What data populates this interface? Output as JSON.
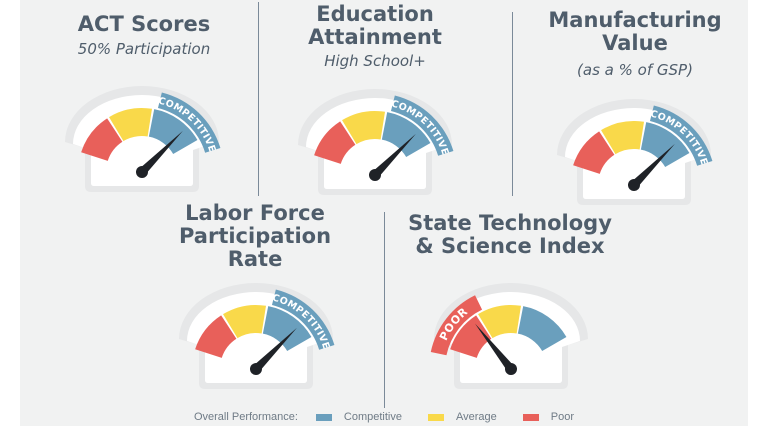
{
  "colors": {
    "competitive": "#6a9fbd",
    "average": "#f9d94a",
    "poor": "#e8605a",
    "gauge_face": "#e6e7e8",
    "gauge_inner": "#ffffff",
    "needle": "#1f2227"
  },
  "gauges": [
    {
      "id": "act",
      "title_lines": [
        "ACT Scores"
      ],
      "subtitle": "50% Participation",
      "rating": "competitive",
      "badge": "COMPETITIVE",
      "needle_level": 0.78
    },
    {
      "id": "education",
      "title_lines": [
        "Education",
        "Attainment"
      ],
      "subtitle": "High School+",
      "rating": "competitive",
      "badge": "COMPETITIVE",
      "needle_level": 0.78
    },
    {
      "id": "manufacturing",
      "title_lines": [
        "Manufacturing",
        "Value"
      ],
      "subtitle": "(as a % of GSP)",
      "rating": "competitive",
      "badge": "COMPETITIVE",
      "needle_level": 0.78
    },
    {
      "id": "labor",
      "title_lines": [
        "Labor Force",
        "Participation",
        "Rate"
      ],
      "subtitle": "",
      "rating": "competitive",
      "badge": "COMPETITIVE",
      "needle_level": 0.78
    },
    {
      "id": "tech",
      "title_lines": [
        "State Technology",
        "& Science Index"
      ],
      "subtitle": "",
      "rating": "poor",
      "badge": "POOR",
      "needle_level": 0.26
    }
  ],
  "legend": {
    "label": "Overall Performance:",
    "items": [
      {
        "label": "Competitive",
        "color": "#6a9fbd"
      },
      {
        "label": "Average",
        "color": "#f9d94a"
      },
      {
        "label": "Poor",
        "color": "#e8605a"
      }
    ]
  }
}
